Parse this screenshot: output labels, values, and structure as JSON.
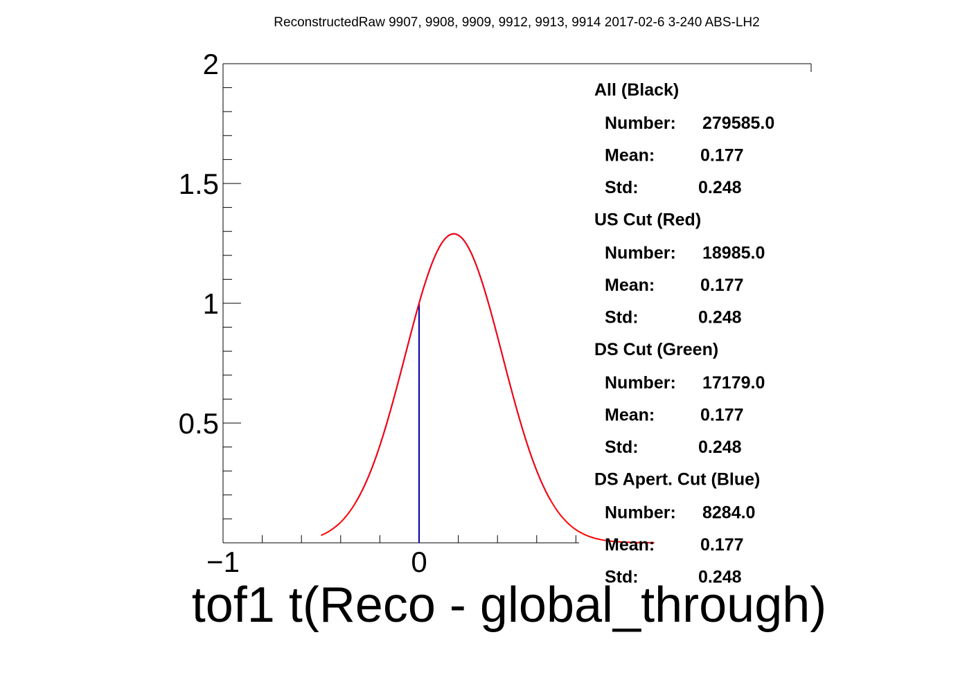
{
  "chart_data": {
    "type": "line",
    "title": "ReconstructedRaw 9907, 9908, 9909, 9912, 9913, 9914 2017-02-6 3-240 ABS-LH2",
    "xlabel": "tof1 t(Reco - global_through)",
    "ylabel": "",
    "xlim": [
      -1,
      2
    ],
    "ylim": [
      0,
      2
    ],
    "x_ticks": [
      -1,
      0
    ],
    "x_tick_labels": [
      "−1",
      "0"
    ],
    "y_ticks": [
      0.5,
      1,
      1.5,
      2
    ],
    "y_tick_labels": [
      "0.5",
      "1",
      "1.5",
      "2"
    ],
    "grid": false,
    "series": [
      {
        "name": "DS Apert. Cut (Blue)",
        "kind": "gaussian",
        "color": "#0000ff",
        "amplitude": 1.29,
        "mean": 0.177,
        "sigma": 0.248,
        "x_range": [
          -0.32,
          0.67
        ]
      },
      {
        "name": "DS Apert. Cut (Blue) histogram",
        "kind": "histogram_bin",
        "color": "#0000aa",
        "x": 0.0,
        "height": 1.0
      },
      {
        "name": "US Cut (Red)",
        "kind": "gaussian",
        "color": "#ff0000",
        "amplitude": 1.29,
        "mean": 0.177,
        "sigma": 0.248,
        "x_range": [
          -0.5,
          1.2
        ]
      }
    ],
    "stats": [
      {
        "head": "All (Black)",
        "number_label": "Number:",
        "number": "279585.0",
        "mean_label": "Mean:",
        "mean": "0.177",
        "std_label": "Std:",
        "std": "0.248"
      },
      {
        "head": "US Cut (Red)",
        "number_label": "Number:",
        "number": "18985.0",
        "mean_label": "Mean:",
        "mean": "0.177",
        "std_label": "Std:",
        "std": "0.248"
      },
      {
        "head": "DS Cut (Green)",
        "number_label": "Number:",
        "number": "17179.0",
        "mean_label": "Mean:",
        "mean": "0.177",
        "std_label": "Std:",
        "std": "0.248"
      },
      {
        "head": "DS Apert. Cut (Blue)",
        "number_label": "Number:",
        "number": "8284.0",
        "mean_label": "Mean:",
        "mean": "0.177",
        "std_label": "Std:",
        "std": "0.248"
      }
    ]
  }
}
